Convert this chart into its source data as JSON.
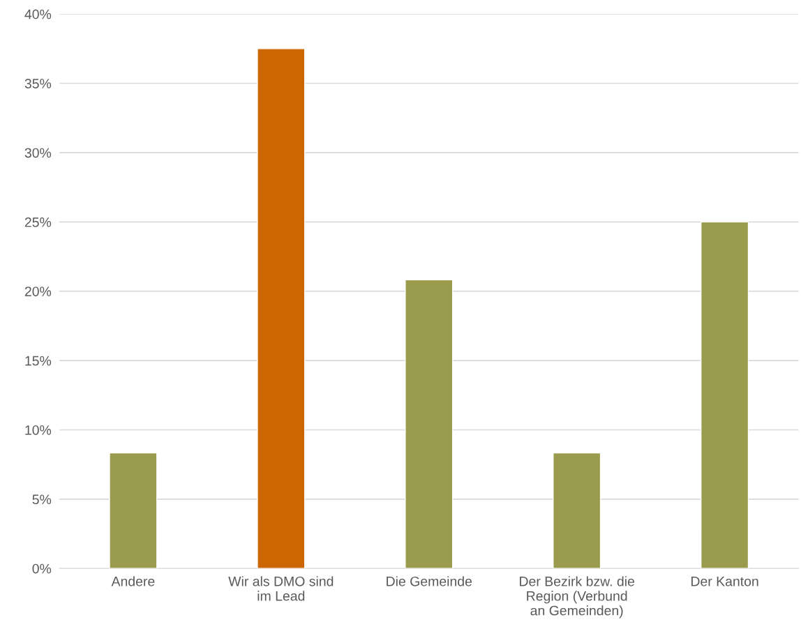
{
  "chart_data": {
    "type": "bar",
    "categories": [
      "Andere",
      "Wir als DMO sind\nim Lead",
      "Die Gemeinde",
      "Der Bezirk bzw. die\nRegion (Verbund\nan Gemeinden)",
      "Der Kanton"
    ],
    "values": [
      8.33,
      37.5,
      20.83,
      8.33,
      25
    ],
    "colors": [
      "#9a9b4c",
      "#cc6600",
      "#9a9b4c",
      "#9a9b4c",
      "#9a9b4c"
    ],
    "ylim": [
      0,
      40
    ],
    "yticks": [
      {
        "value": 0,
        "label": "0%"
      },
      {
        "value": 5,
        "label": "5%"
      },
      {
        "value": 10,
        "label": "10%"
      },
      {
        "value": 15,
        "label": "15%"
      },
      {
        "value": 20,
        "label": "20%"
      },
      {
        "value": 25,
        "label": "25%"
      },
      {
        "value": 30,
        "label": "30%"
      },
      {
        "value": 35,
        "label": "35%"
      },
      {
        "value": 40,
        "label": "40%"
      }
    ],
    "grid": "y"
  }
}
